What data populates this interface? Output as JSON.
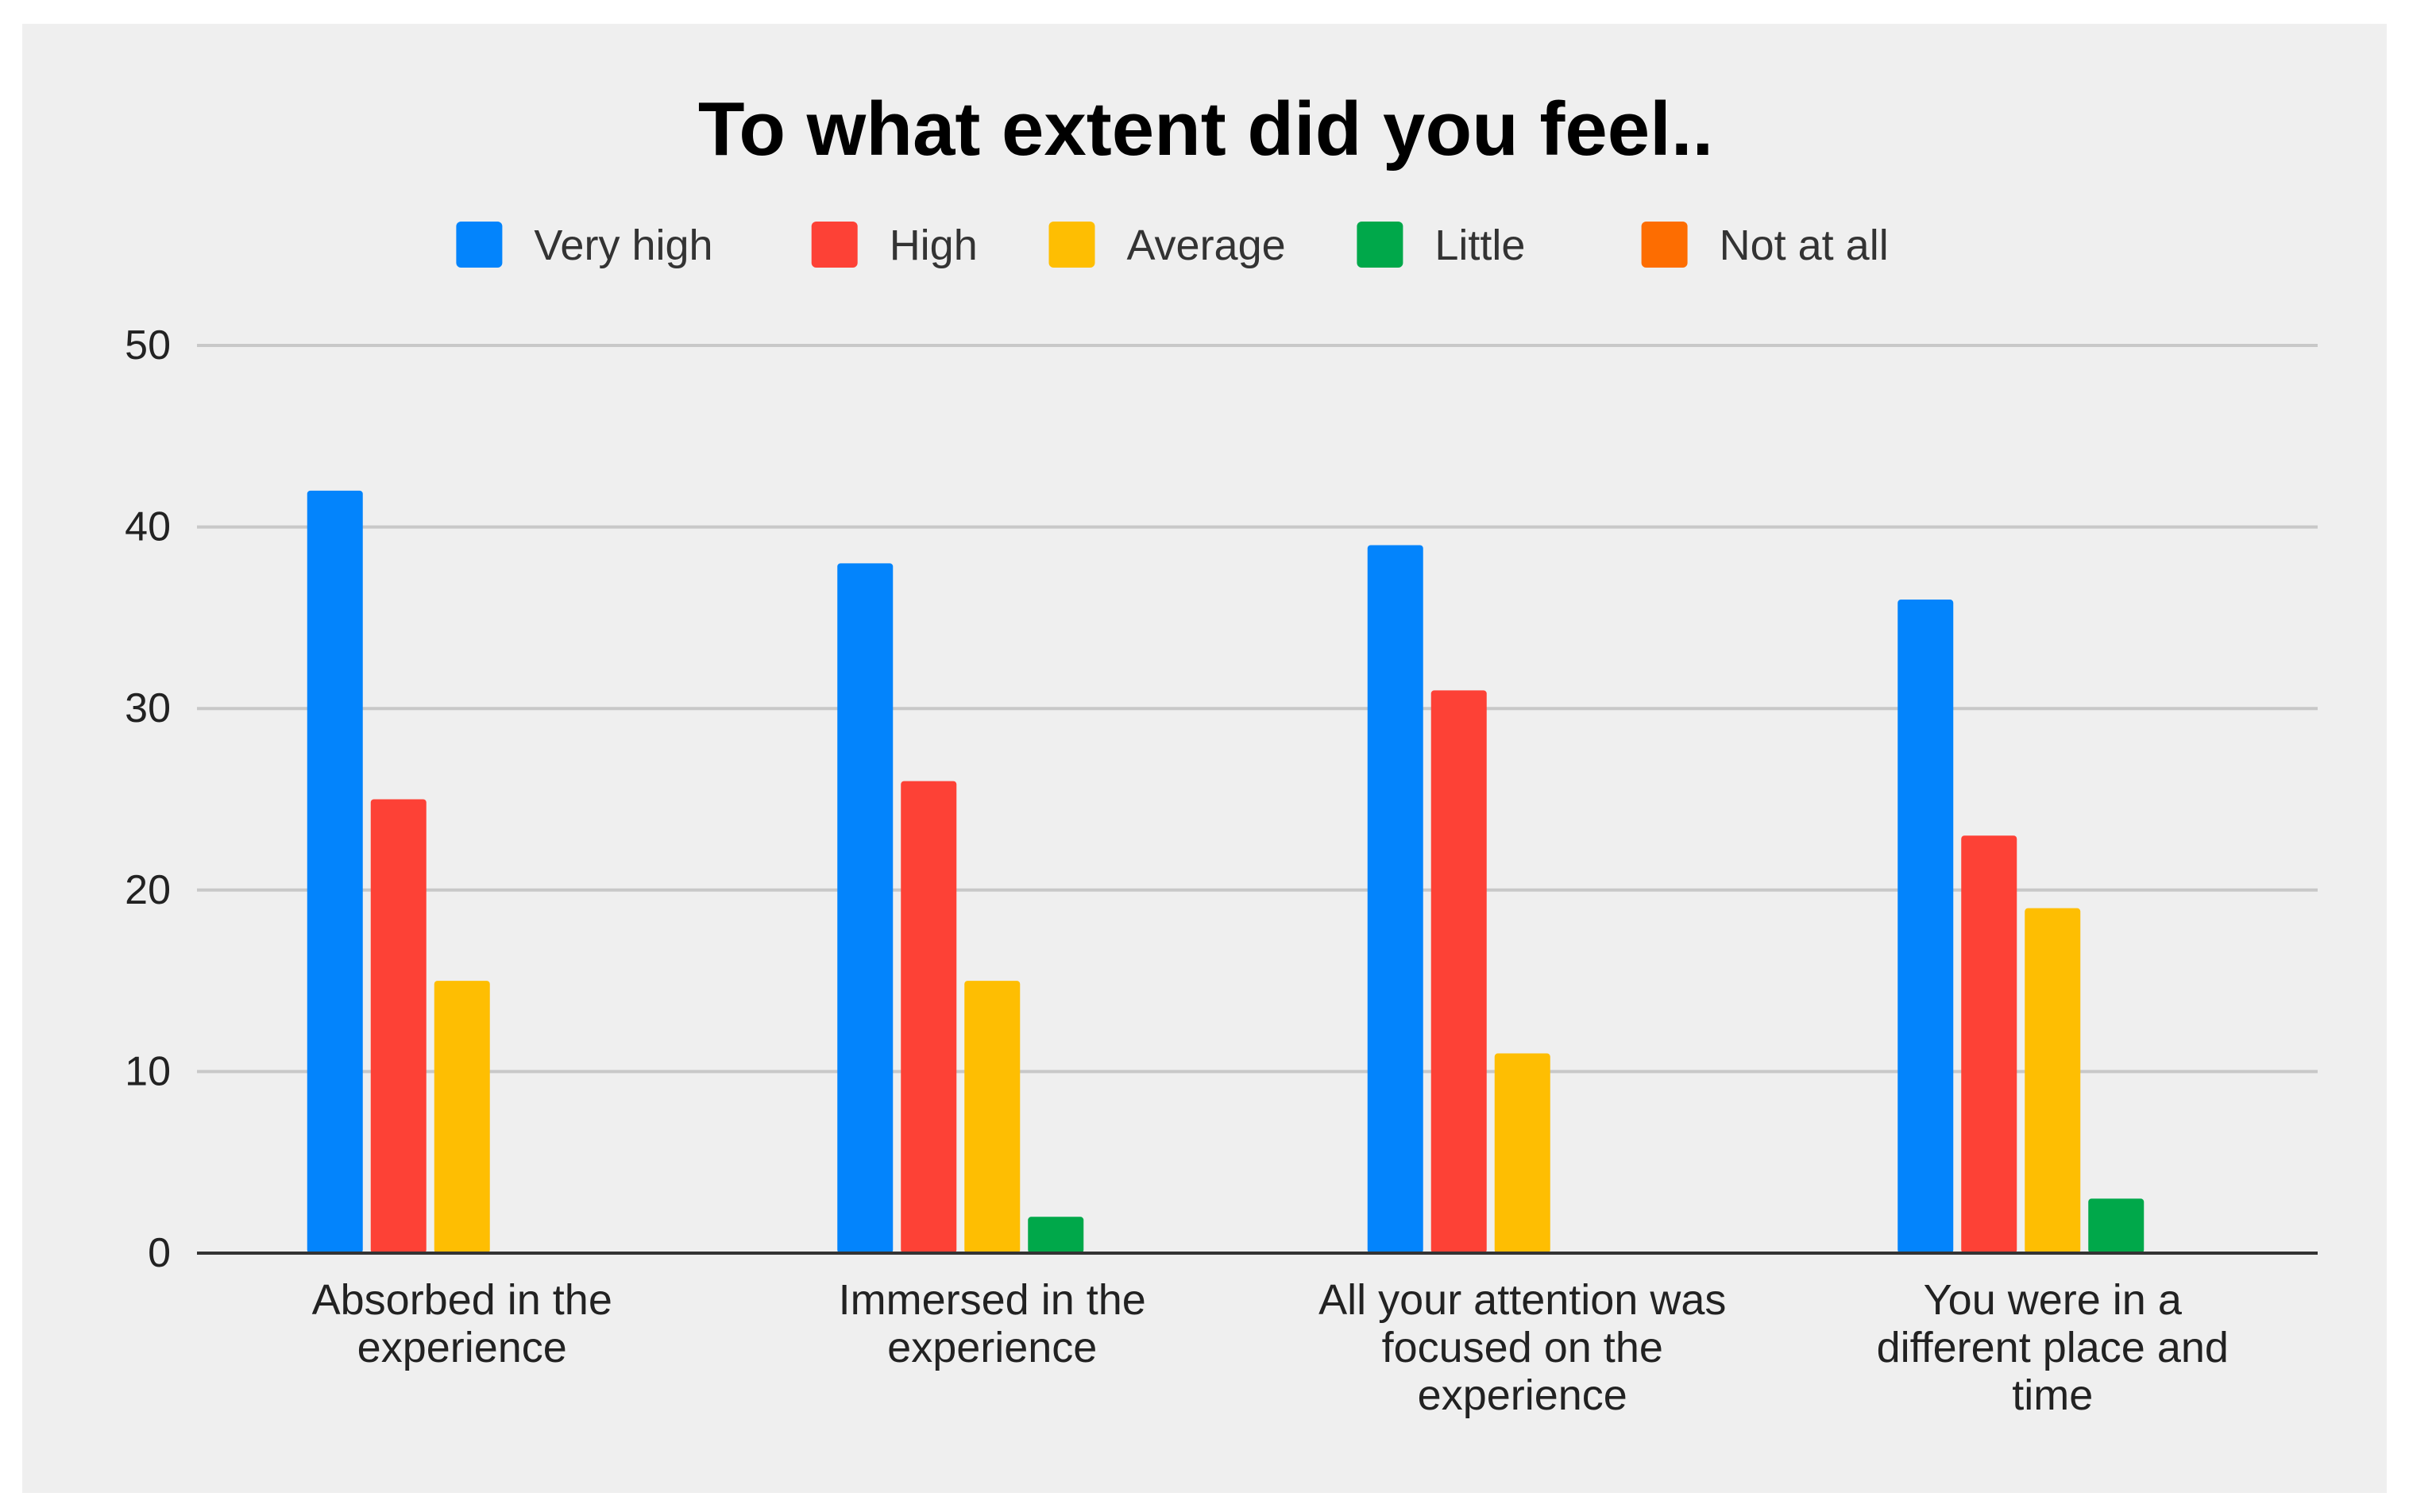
{
  "chart_data": {
    "type": "bar",
    "title": "To what extent did you feel..",
    "xlabel": "",
    "ylabel": "",
    "ylim": [
      0,
      50
    ],
    "yticks": [
      0,
      10,
      20,
      30,
      40,
      50
    ],
    "grid": true,
    "legend_position": "top",
    "categories": [
      [
        "Absorbed in the",
        "experience"
      ],
      [
        "Immersed in the",
        "experience"
      ],
      [
        "All your attention was",
        "focused on the",
        "experience"
      ],
      [
        "You were in a",
        "different place and",
        "time"
      ]
    ],
    "series": [
      {
        "name": "Very high",
        "color": "#0384FC",
        "values": [
          42,
          38,
          39,
          36
        ]
      },
      {
        "name": "High",
        "color": "#FD4136",
        "values": [
          25,
          26,
          31,
          23
        ]
      },
      {
        "name": "Average",
        "color": "#FEBE02",
        "values": [
          15,
          15,
          11,
          19
        ]
      },
      {
        "name": "Little",
        "color": "#00A84A",
        "values": [
          0,
          2,
          0,
          3
        ]
      },
      {
        "name": "Not at all",
        "color": "#FD6D01",
        "values": [
          0,
          0,
          0,
          0
        ]
      }
    ]
  },
  "colors": {
    "panel_background": "#EFEFEF",
    "page_background": "#FFFFFF",
    "gridline": "#C8C8C8",
    "axis": "#333333",
    "text": "#222222",
    "title": "#000000"
  }
}
